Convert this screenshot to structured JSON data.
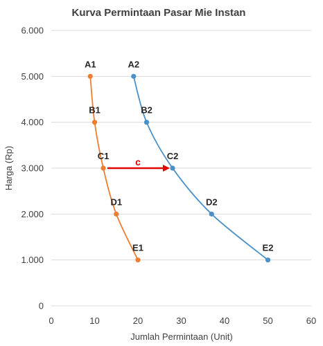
{
  "chart_data": {
    "type": "scatter",
    "title": "Kurva Permintaan Pasar Mie Instan",
    "xlabel": "Jumlah Permintaan (Unit)",
    "ylabel": "Harga (Rp)",
    "xlim": [
      0,
      60
    ],
    "ylim": [
      0,
      6000
    ],
    "x_ticks": [
      0,
      10,
      20,
      30,
      40,
      50,
      60
    ],
    "y_ticks": [
      0,
      1000,
      2000,
      3000,
      4000,
      5000,
      6000
    ],
    "x_tick_labels": [
      "0",
      "10",
      "20",
      "30",
      "40",
      "50",
      "60"
    ],
    "y_tick_labels": [
      "0",
      "1.000",
      "2.000",
      "3.000",
      "4.000",
      "5.000",
      "6.000"
    ],
    "grid": "horizontal",
    "series": [
      {
        "color": "#ED7D31",
        "points": [
          {
            "label": "A1",
            "x": 9,
            "y": 5000
          },
          {
            "label": "B1",
            "x": 10,
            "y": 4000
          },
          {
            "label": "C1",
            "x": 12,
            "y": 3000
          },
          {
            "label": "D1",
            "x": 15,
            "y": 2000
          },
          {
            "label": "E1",
            "x": 20,
            "y": 1000
          }
        ]
      },
      {
        "color": "#4A90C8",
        "points": [
          {
            "label": "A2",
            "x": 19,
            "y": 5000
          },
          {
            "label": "B2",
            "x": 22,
            "y": 4000
          },
          {
            "label": "C2",
            "x": 28,
            "y": 3000
          },
          {
            "label": "D2",
            "x": 37,
            "y": 2000
          },
          {
            "label": "E2",
            "x": 50,
            "y": 1000
          }
        ]
      }
    ],
    "annotation": {
      "label": "c",
      "color": "#E00000",
      "from": {
        "x": 12,
        "y": 3000
      },
      "to": {
        "x": 28,
        "y": 3000
      }
    }
  }
}
